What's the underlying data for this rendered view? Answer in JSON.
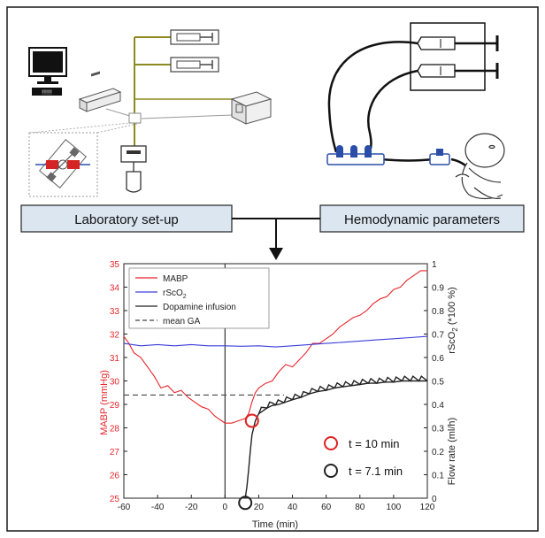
{
  "panels": {
    "left_label": "Laboratory set-up",
    "right_label": "Hemodynamic parameters"
  },
  "computer": {
    "keyboard_text": "!!!!!!"
  },
  "colors": {
    "mabp": "#e8262b",
    "rsco2": "#3a3fd8",
    "dopamine": "#222222",
    "mean_ga": "#444444",
    "label_box_fill": "#dbe6f1",
    "connector_blue": "#2a4ea8",
    "tubing": "#8f8a1e",
    "marker_red": "#e02020",
    "marker_black": "#222222"
  },
  "chart_data": {
    "type": "line",
    "xlabel": "Time (min)",
    "ylabel_left": "MABP (mmHg)",
    "ylabel_right_top": "rScO2 (*100 %)",
    "ylabel_right_bottom": "Flow rate (ml/h)",
    "xlim": [
      -60,
      120
    ],
    "ylim_left": [
      25,
      35
    ],
    "ylim_right": [
      0,
      1
    ],
    "x_ticks": [
      "-60",
      "-40",
      "-20",
      "0",
      "20",
      "40",
      "60",
      "80",
      "100",
      "120"
    ],
    "y_left_ticks": [
      "25",
      "26",
      "27",
      "28",
      "29",
      "30",
      "31",
      "32",
      "33",
      "34",
      "35"
    ],
    "y_right_ticks": [
      "0",
      "0.1",
      "0.2",
      "0.3",
      "0.4",
      "0.5",
      "0.6",
      "0.7",
      "0.8",
      "0.9",
      "1"
    ],
    "vertical_line_x": 0,
    "legend": [
      {
        "label": "MABP",
        "style": "solid",
        "color": "#e8262b"
      },
      {
        "label": "rScO",
        "sub": "2",
        "style": "solid",
        "color": "#3a3fd8"
      },
      {
        "label": "Dopamine infusion",
        "style": "solid",
        "color": "#222222"
      },
      {
        "label": "mean GA",
        "style": "dashed",
        "color": "#444444"
      }
    ],
    "legend_position": "top-left",
    "series": [
      {
        "name": "MABP",
        "axis": "left",
        "x": [
          -60,
          -57,
          -54,
          -50,
          -46,
          -42,
          -38,
          -34,
          -30,
          -26,
          -22,
          -18,
          -14,
          -10,
          -6,
          -2,
          0,
          4,
          8,
          12,
          14,
          16,
          18,
          20,
          24,
          28,
          32,
          36,
          40,
          44,
          48,
          52,
          56,
          60,
          64,
          68,
          72,
          76,
          80,
          84,
          88,
          92,
          96,
          100,
          104,
          108,
          112,
          116,
          120
        ],
        "y": [
          31.9,
          31.6,
          31.2,
          31.0,
          30.6,
          30.2,
          29.7,
          29.8,
          29.5,
          29.6,
          29.3,
          29.1,
          28.9,
          28.8,
          28.5,
          28.3,
          28.2,
          28.2,
          28.3,
          28.4,
          28.6,
          29.1,
          29.5,
          29.7,
          29.9,
          30.0,
          30.4,
          30.7,
          30.6,
          30.9,
          31.2,
          31.6,
          31.6,
          31.8,
          32.0,
          32.3,
          32.5,
          32.7,
          32.8,
          33.0,
          33.3,
          33.5,
          33.6,
          33.9,
          34.0,
          34.3,
          34.5,
          34.7,
          34.7
        ]
      },
      {
        "name": "rScO2",
        "axis": "right",
        "x": [
          -60,
          -50,
          -40,
          -30,
          -20,
          -10,
          0,
          10,
          20,
          30,
          40,
          50,
          60,
          70,
          80,
          90,
          100,
          110,
          120
        ],
        "y": [
          0.66,
          0.65,
          0.655,
          0.65,
          0.655,
          0.65,
          0.65,
          0.648,
          0.65,
          0.645,
          0.65,
          0.655,
          0.66,
          0.665,
          0.67,
          0.675,
          0.68,
          0.685,
          0.69
        ]
      },
      {
        "name": "Dopamine infusion",
        "axis": "right",
        "x": [
          12,
          13,
          14,
          15,
          16,
          17,
          18,
          20,
          22,
          25,
          28,
          32,
          36,
          40,
          45,
          50,
          55,
          60,
          65,
          70,
          75,
          80,
          85,
          90,
          95,
          100,
          105,
          110,
          115,
          120
        ],
        "y": [
          0.0,
          0.05,
          0.12,
          0.2,
          0.27,
          0.3,
          0.33,
          0.36,
          0.37,
          0.385,
          0.395,
          0.4,
          0.41,
          0.42,
          0.43,
          0.445,
          0.455,
          0.46,
          0.47,
          0.475,
          0.48,
          0.485,
          0.49,
          0.49,
          0.495,
          0.495,
          0.5,
          0.5,
          0.5,
          0.5
        ]
      },
      {
        "name": "mean GA",
        "axis": "left",
        "style": "dashed",
        "x": [
          -60,
          35
        ],
        "y": [
          29.4,
          29.4
        ]
      }
    ],
    "annotations": [
      {
        "id": "red",
        "x": 16,
        "y_right": 0.33,
        "label": "t = 10 min",
        "color": "#e02020"
      },
      {
        "id": "black",
        "x": 12,
        "y_right": -0.02,
        "label": "t = 7.1 min",
        "color": "#222222"
      }
    ]
  }
}
